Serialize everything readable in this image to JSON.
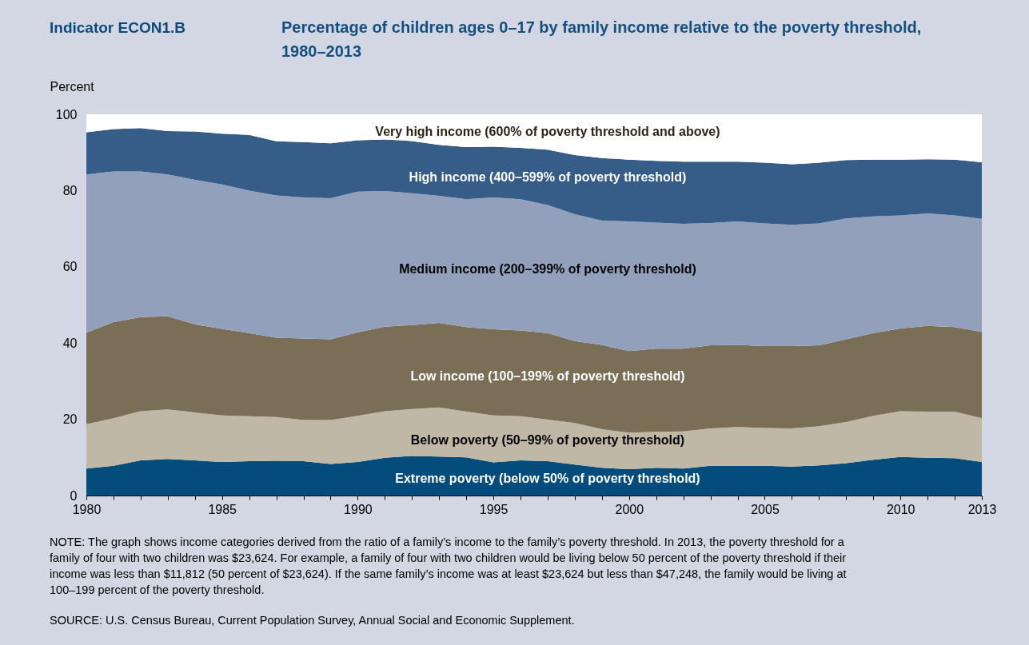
{
  "chart_data": {
    "type": "area",
    "stacked": true,
    "title": "Percentage of children ages 0–17 by family income relative to the poverty threshold, 1980–2013",
    "ylabel": "Percent",
    "grid": false,
    "legend": false,
    "annotations": [
      "Indicator ECON1.B",
      "NOTE: The graph shows income categories derived from the ratio of a family’s income to the family’s poverty threshold. In 2013, the poverty threshold for a family of four with two children was $23,624. For example, a family of four with two children would be living below 50 percent of the poverty threshold if their income was less than $11,812 (50 percent of $23,624). If the same family’s income was at least $23,624 but less than $47,248, the family would be living at 100–199 percent of the poverty threshold.",
      "SOURCE: U.S. Census Bureau, Current Population Survey, Annual Social and Economic Supplement."
    ],
    "x": [
      1980,
      1981,
      1982,
      1983,
      1984,
      1985,
      1986,
      1987,
      1988,
      1989,
      1990,
      1991,
      1992,
      1993,
      1994,
      1995,
      1996,
      1997,
      1998,
      1999,
      2000,
      2001,
      2002,
      2003,
      2004,
      2005,
      2006,
      2007,
      2008,
      2009,
      2010,
      2011,
      2012,
      2013
    ],
    "xlim": [
      1980,
      2013
    ],
    "xticks": [
      1980,
      {
        "value": 1981,
        "label": null
      },
      {
        "value": 1982,
        "label": null
      },
      {
        "value": 1983,
        "label": null
      },
      {
        "value": 1984,
        "label": null
      },
      1985,
      {
        "value": 1986,
        "label": null
      },
      {
        "value": 1987,
        "label": null
      },
      {
        "value": 1988,
        "label": null
      },
      {
        "value": 1989,
        "label": null
      },
      1990,
      {
        "value": 1991,
        "label": null
      },
      {
        "value": 1992,
        "label": null
      },
      {
        "value": 1993,
        "label": null
      },
      {
        "value": 1994,
        "label": null
      },
      1995,
      {
        "value": 1996,
        "label": null
      },
      {
        "value": 1997,
        "label": null
      },
      {
        "value": 1998,
        "label": null
      },
      {
        "value": 1999,
        "label": null
      },
      2000,
      {
        "value": 2001,
        "label": null
      },
      {
        "value": 2002,
        "label": null
      },
      {
        "value": 2003,
        "label": null
      },
      {
        "value": 2004,
        "label": null
      },
      2005,
      {
        "value": 2006,
        "label": null
      },
      {
        "value": 2007,
        "label": null
      },
      {
        "value": 2008,
        "label": null
      },
      {
        "value": 2009,
        "label": null
      },
      2010,
      {
        "value": 2011,
        "label": null
      },
      {
        "value": 2012,
        "label": null
      },
      2013
    ],
    "ylim": [
      0,
      100
    ],
    "yticks": [
      0,
      20,
      40,
      60,
      80,
      100
    ],
    "series": [
      {
        "name": "Extreme poverty (below 50% of poverty threshold)",
        "color": "#034c7b",
        "values": [
          7.1,
          7.8,
          9.2,
          9.6,
          9.2,
          8.8,
          9.0,
          9.1,
          9.0,
          8.3,
          8.8,
          9.9,
          10.4,
          10.2,
          10.0,
          8.7,
          9.2,
          9.0,
          8.1,
          7.3,
          6.9,
          7.3,
          7.1,
          7.8,
          7.8,
          7.8,
          7.6,
          7.9,
          8.5,
          9.4,
          10.1,
          9.9,
          9.8,
          8.8
        ]
      },
      {
        "name": "Below poverty (50–99% of poverty threshold)",
        "color": "#c0b8a6",
        "values": [
          11.6,
          12.5,
          12.9,
          13.0,
          12.6,
          12.2,
          11.8,
          11.5,
          10.8,
          11.5,
          12.1,
          12.2,
          12.3,
          12.9,
          12.0,
          12.3,
          11.6,
          10.9,
          10.9,
          10.1,
          9.6,
          9.4,
          9.7,
          9.8,
          10.2,
          9.9,
          10.0,
          10.3,
          10.8,
          11.5,
          12.0,
          12.1,
          12.2,
          11.5
        ]
      },
      {
        "name": "Low income (100–199% of poverty threshold)",
        "color": "#7a6e57",
        "values": [
          24.0,
          25.2,
          24.7,
          24.4,
          23.1,
          22.7,
          21.8,
          20.8,
          21.4,
          21.2,
          21.9,
          22.2,
          22.0,
          22.2,
          22.2,
          22.6,
          22.5,
          22.7,
          21.5,
          22.1,
          21.4,
          21.8,
          21.7,
          21.8,
          21.5,
          21.5,
          21.6,
          21.2,
          21.7,
          21.7,
          21.7,
          22.5,
          22.2,
          22.6
        ]
      },
      {
        "name": "Medium income (200–399% of poverty threshold)",
        "color": "#93a0bc",
        "values": [
          41.5,
          39.5,
          38.2,
          37.2,
          37.9,
          37.9,
          37.4,
          37.3,
          37.0,
          37.0,
          36.9,
          35.6,
          34.6,
          33.3,
          33.5,
          34.6,
          34.4,
          33.6,
          33.3,
          32.6,
          34.0,
          33.1,
          32.8,
          32.1,
          32.4,
          32.2,
          31.8,
          32.0,
          31.7,
          30.6,
          29.7,
          29.5,
          29.3,
          29.7
        ]
      },
      {
        "name": "High income (400–599% of poverty threshold)",
        "color": "#365c88",
        "values": [
          11.1,
          11.1,
          11.4,
          11.4,
          12.7,
          13.3,
          14.6,
          14.2,
          14.5,
          14.4,
          13.5,
          13.5,
          13.7,
          13.4,
          13.7,
          13.3,
          13.5,
          14.5,
          15.5,
          16.4,
          16.2,
          16.2,
          16.3,
          16.1,
          15.7,
          15.9,
          15.9,
          15.9,
          15.3,
          14.9,
          14.6,
          14.2,
          14.6,
          14.8
        ]
      },
      {
        "name": "Very high income (600% of poverty threshold and above)",
        "color": "#ffffff",
        "values": [
          4.7,
          3.9,
          3.6,
          4.4,
          4.5,
          5.1,
          5.4,
          7.1,
          7.3,
          7.6,
          6.8,
          6.6,
          7.0,
          8.0,
          8.6,
          8.5,
          8.8,
          9.3,
          10.7,
          11.5,
          11.9,
          12.2,
          12.4,
          12.4,
          12.4,
          12.7,
          13.1,
          12.7,
          12.0,
          11.9,
          11.9,
          11.8,
          11.9,
          12.6
        ]
      }
    ]
  }
}
